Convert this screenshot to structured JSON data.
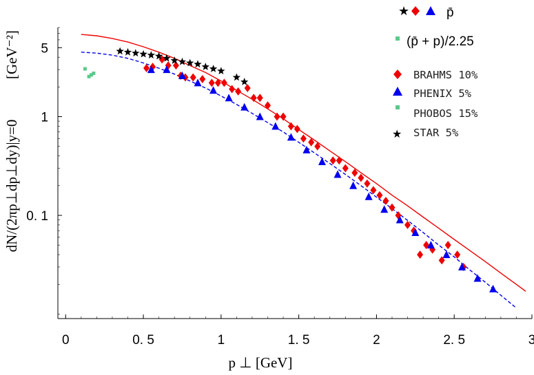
{
  "chart_data": {
    "type": "scatter",
    "title": "",
    "xlabel": "p ⊥ [GeV]",
    "ylabel": "dN/(2πp⊥dp⊥dy)|y=0",
    "ylabel_unit": "[GeV⁻²]",
    "xlim": [
      -0.05,
      3.0
    ],
    "ylim": [
      0.009,
      8
    ],
    "yscale": "log",
    "x_ticks": [
      0,
      0.5,
      1,
      1.5,
      2,
      2.5,
      3
    ],
    "x_tick_labels": [
      "0",
      "0. 5",
      "1",
      "1. 5",
      "2",
      "2. 5",
      "3"
    ],
    "y_ticks": [
      0.1,
      1,
      5
    ],
    "y_tick_labels": [
      "0. 1",
      "1",
      "5"
    ],
    "legend_top": {
      "symbols_label": "p̄",
      "ratio_label": "(p̄ + p)/2.25"
    },
    "series": [
      {
        "name": "BRAHMS 10%",
        "marker": "diamond",
        "color": "#ee0000",
        "x": [
          0.52,
          0.56,
          0.62,
          0.66,
          0.71,
          0.74,
          0.77,
          0.82,
          0.88,
          0.94,
          0.98,
          1.02,
          1.07,
          1.11,
          1.17,
          1.21,
          1.25,
          1.3,
          1.36,
          1.4,
          1.45,
          1.49,
          1.53,
          1.58,
          1.62,
          1.72,
          1.76,
          1.8,
          1.86,
          1.9,
          1.94,
          1.98,
          2.02,
          2.06,
          2.1,
          2.14,
          2.2,
          2.24,
          2.28,
          2.32,
          2.36,
          2.42,
          2.46,
          2.52,
          2.56
        ],
        "y": [
          3.1,
          3.2,
          3.8,
          3.3,
          3.3,
          2.6,
          2.5,
          2.5,
          2.4,
          2.2,
          2.2,
          2.2,
          1.9,
          1.8,
          1.95,
          1.55,
          1.55,
          1.3,
          1.0,
          1.0,
          0.8,
          0.75,
          0.6,
          0.55,
          0.5,
          0.36,
          0.36,
          0.3,
          0.27,
          0.24,
          0.21,
          0.18,
          0.16,
          0.14,
          0.12,
          0.1,
          0.08,
          0.07,
          0.04,
          0.05,
          0.045,
          0.035,
          0.05,
          0.04,
          0.03
        ]
      },
      {
        "name": "PHENIX   5%",
        "marker": "triangle",
        "color": "#0000ee",
        "x": [
          0.55,
          0.65,
          0.75,
          0.85,
          0.95,
          1.05,
          1.15,
          1.25,
          1.35,
          1.45,
          1.55,
          1.65,
          1.75,
          1.85,
          1.95,
          2.05,
          2.15,
          2.25,
          2.35,
          2.45,
          2.55,
          2.65,
          2.75
        ],
        "y": [
          3.0,
          3.0,
          2.6,
          2.2,
          1.85,
          1.55,
          1.25,
          1.0,
          0.8,
          0.62,
          0.46,
          0.35,
          0.26,
          0.2,
          0.155,
          0.115,
          0.09,
          0.067,
          0.05,
          0.04,
          0.03,
          0.023,
          0.018
        ]
      },
      {
        "name": "PHOBOS 15%",
        "marker": "square",
        "color": "#5cc88a",
        "x": [
          0.125,
          0.15,
          0.165,
          0.18
        ],
        "y": [
          3.05,
          2.55,
          2.65,
          2.75
        ]
      },
      {
        "name": "STAR      5%",
        "marker": "star",
        "color": "#000000",
        "x": [
          0.35,
          0.4,
          0.45,
          0.5,
          0.55,
          0.6,
          0.65,
          0.7,
          0.75,
          0.8,
          0.85,
          0.9,
          0.95,
          1.0,
          1.1,
          1.15
        ],
        "y": [
          4.6,
          4.5,
          4.4,
          4.3,
          4.2,
          4.1,
          3.9,
          3.7,
          3.6,
          3.5,
          3.4,
          3.2,
          3.05,
          2.9,
          2.5,
          2.25
        ]
      }
    ],
    "curves": [
      {
        "style": "solid",
        "color": "#ee0000",
        "x": [
          0.1,
          0.2,
          0.3,
          0.4,
          0.5,
          0.6,
          0.7,
          0.8,
          0.9,
          1.0,
          1.1,
          1.2,
          1.3,
          1.4,
          1.5,
          1.6,
          1.7,
          1.8,
          1.9,
          2.0,
          2.1,
          2.2,
          2.3,
          2.4,
          2.5,
          2.6,
          2.7,
          2.8,
          2.9,
          2.96
        ],
        "y": [
          6.8,
          6.6,
          6.2,
          5.7,
          5.1,
          4.5,
          3.9,
          3.3,
          2.8,
          2.3,
          1.85,
          1.5,
          1.2,
          0.95,
          0.74,
          0.58,
          0.45,
          0.35,
          0.27,
          0.21,
          0.16,
          0.125,
          0.096,
          0.074,
          0.057,
          0.044,
          0.034,
          0.026,
          0.02,
          0.017
        ]
      },
      {
        "style": "dashed",
        "color": "#0000ee",
        "x": [
          0.1,
          0.2,
          0.3,
          0.4,
          0.5,
          0.6,
          0.7,
          0.8,
          0.9,
          1.0,
          1.1,
          1.2,
          1.3,
          1.4,
          1.5,
          1.6,
          1.7,
          1.8,
          1.9,
          2.0,
          2.1,
          2.2,
          2.3,
          2.4,
          2.5,
          2.6,
          2.7,
          2.8,
          2.9
        ],
        "y": [
          4.5,
          4.4,
          4.2,
          3.9,
          3.5,
          3.1,
          2.7,
          2.3,
          1.95,
          1.62,
          1.33,
          1.08,
          0.87,
          0.7,
          0.55,
          0.43,
          0.335,
          0.26,
          0.2,
          0.153,
          0.117,
          0.089,
          0.067,
          0.05,
          0.038,
          0.028,
          0.021,
          0.0155,
          0.0115
        ]
      }
    ]
  },
  "legend_entries": [
    "BRAHMS 10%",
    "PHENIX   5%",
    "PHOBOS 15%",
    "STAR      5%"
  ]
}
